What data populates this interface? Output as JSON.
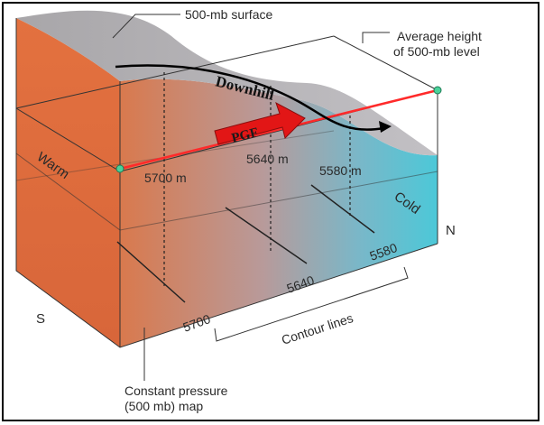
{
  "diagram": {
    "labels": {
      "surface": "500-mb surface",
      "average_height_line1": "Average height",
      "average_height_line2": "of 500-mb level",
      "downhill": "Downhill",
      "pgf": "PGF",
      "warm": "Warm",
      "cold": "Cold",
      "south": "S",
      "north": "N",
      "height_5700": "5700 m",
      "height_5640": "5640 m",
      "height_5580": "5580 m",
      "contour_5700": "5700",
      "contour_5640": "5640",
      "contour_5580": "5580",
      "contour_lines": "Contour lines",
      "map_line1": "Constant pressure",
      "map_line2": "(500 mb) map"
    },
    "colors": {
      "warm": "#e06a3a",
      "cold": "#4cc8d8",
      "surface": "#b6b4b8",
      "pgf_arrow": "#e21616",
      "connector_line": "#ff2a2a",
      "endpoint": "#4ad29a"
    }
  }
}
